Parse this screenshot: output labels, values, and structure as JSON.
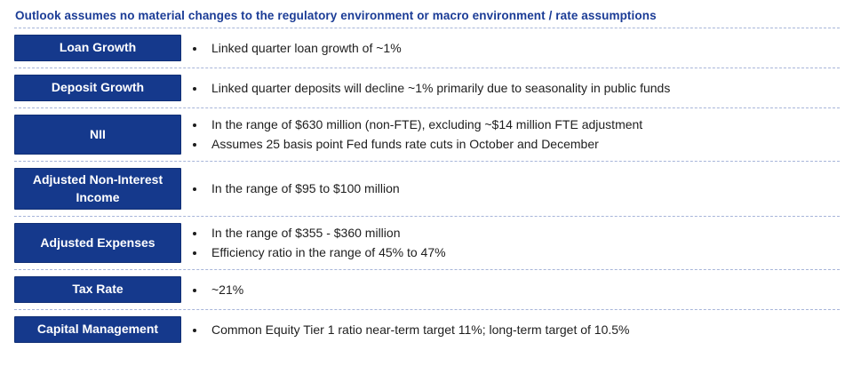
{
  "page": {
    "title": "Outlook assumes no material changes to the regulatory environment or macro environment / rate assumptions"
  },
  "colors": {
    "navy_box": "#15398C",
    "header_text": "#1B3C96",
    "divider": "#A7B5D9",
    "body_text": "#1E1E1E",
    "label_text": "#FFFFFF",
    "background": "#FFFFFF"
  },
  "outlook_rows": [
    {
      "label": "Loan Growth",
      "bullets": [
        "Linked quarter loan growth of ~1%"
      ]
    },
    {
      "label": "Deposit Growth",
      "bullets": [
        "Linked quarter deposits will decline ~1% primarily due to seasonality in public funds"
      ]
    },
    {
      "label": "NII",
      "bullets": [
        "In the range of $630 million (non-FTE), excluding ~$14 million FTE adjustment",
        "Assumes 25 basis point Fed funds rate cuts in October and December"
      ]
    },
    {
      "label": "Adjusted Non-Interest Income",
      "bullets": [
        "In the range of $95 to $100 million"
      ]
    },
    {
      "label": "Adjusted Expenses",
      "bullets": [
        "In the range of $355 - $360 million",
        "Efficiency ratio in the range of 45% to 47%"
      ]
    },
    {
      "label": "Tax Rate",
      "bullets": [
        "~21%"
      ]
    },
    {
      "label": "Capital Management",
      "bullets": [
        "Common Equity Tier 1 ratio near-term target 11%; long-term target of 10.5%"
      ]
    }
  ]
}
